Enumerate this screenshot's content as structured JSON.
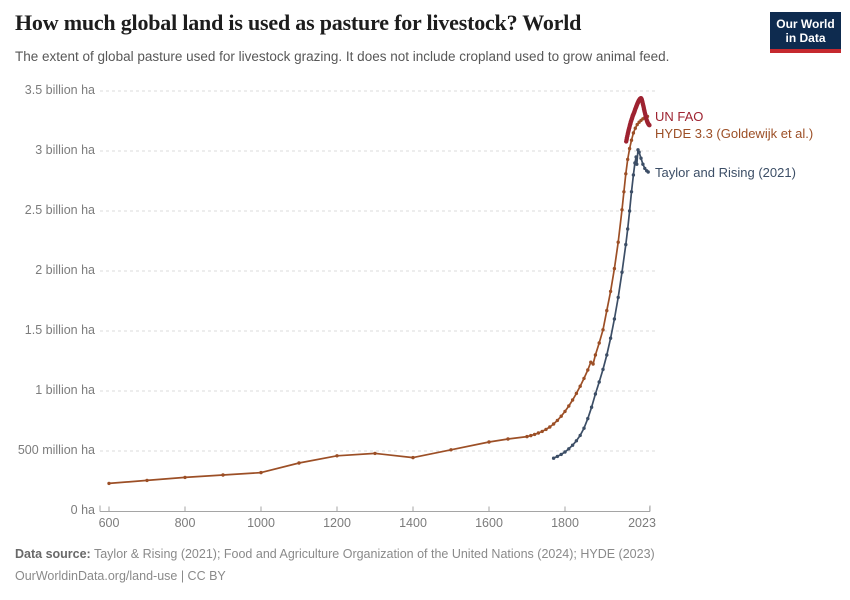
{
  "header": {
    "title": "How much global land is used as pasture for livestock? World",
    "subtitle": "The extent of global pasture used for livestock grazing. It does not include cropland used to grow animal feed."
  },
  "logo": {
    "line1": "Our World",
    "line2": "in Data",
    "bg": "#0e2b4f",
    "stripe": "#c5292f"
  },
  "chart_data": {
    "type": "line",
    "title": "How much global land is used as pasture for livestock? World",
    "unit": "million ha",
    "grid": "dashed",
    "legend_position": "right-end-labels",
    "colors": {
      "grid": "#dbdbdb",
      "axis": "#a5a5a5",
      "tick_text": "#7c7c7c"
    },
    "x_axis": {
      "range": [
        580,
        2023
      ],
      "ticks": [
        {
          "label": "600",
          "year": 600
        },
        {
          "label": "800",
          "year": 800
        },
        {
          "label": "1000",
          "year": 1000
        },
        {
          "label": "1200",
          "year": 1200
        },
        {
          "label": "1400",
          "year": 1400
        },
        {
          "label": "1600",
          "year": 1600
        },
        {
          "label": "1800",
          "year": 1800
        },
        {
          "label": "2023",
          "year": 2023
        }
      ]
    },
    "y_axis": {
      "range_million_ha": [
        0,
        3500
      ],
      "ticks": [
        {
          "label": "0 ha",
          "value": 0
        },
        {
          "label": "500 million ha",
          "value": 500
        },
        {
          "label": "1 billion ha",
          "value": 1000
        },
        {
          "label": "1.5 billion ha",
          "value": 1500
        },
        {
          "label": "2 billion ha",
          "value": 2000
        },
        {
          "label": "2.5 billion ha",
          "value": 2500
        },
        {
          "label": "3 billion ha",
          "value": 3000
        },
        {
          "label": "3.5 billion ha",
          "value": 3500
        }
      ]
    },
    "series": [
      {
        "name": "UN FAO",
        "color": "#9e2331",
        "width": 3,
        "marker": 2.2,
        "points": [
          [
            1961,
            3080
          ],
          [
            1962,
            3095
          ],
          [
            1963,
            3110
          ],
          [
            1964,
            3125
          ],
          [
            1965,
            3140
          ],
          [
            1966,
            3155
          ],
          [
            1967,
            3168
          ],
          [
            1968,
            3180
          ],
          [
            1969,
            3192
          ],
          [
            1970,
            3205
          ],
          [
            1971,
            3218
          ],
          [
            1972,
            3228
          ],
          [
            1973,
            3240
          ],
          [
            1974,
            3250
          ],
          [
            1975,
            3260
          ],
          [
            1976,
            3270
          ],
          [
            1977,
            3280
          ],
          [
            1978,
            3290
          ],
          [
            1979,
            3298
          ],
          [
            1980,
            3306
          ],
          [
            1981,
            3314
          ],
          [
            1982,
            3322
          ],
          [
            1983,
            3330
          ],
          [
            1984,
            3340
          ],
          [
            1985,
            3350
          ],
          [
            1986,
            3358
          ],
          [
            1987,
            3366
          ],
          [
            1988,
            3374
          ],
          [
            1989,
            3382
          ],
          [
            1990,
            3390
          ],
          [
            1991,
            3398
          ],
          [
            1992,
            3405
          ],
          [
            1993,
            3412
          ],
          [
            1994,
            3418
          ],
          [
            1995,
            3424
          ],
          [
            1996,
            3428
          ],
          [
            1997,
            3432
          ],
          [
            1998,
            3436
          ],
          [
            1999,
            3438
          ],
          [
            2000,
            3440
          ],
          [
            2001,
            3435
          ],
          [
            2002,
            3428
          ],
          [
            2003,
            3418
          ],
          [
            2004,
            3406
          ],
          [
            2005,
            3392
          ],
          [
            2006,
            3378
          ],
          [
            2007,
            3364
          ],
          [
            2008,
            3350
          ],
          [
            2009,
            3336
          ],
          [
            2010,
            3322
          ],
          [
            2011,
            3308
          ],
          [
            2012,
            3295
          ],
          [
            2013,
            3282
          ],
          [
            2014,
            3270
          ],
          [
            2015,
            3258
          ],
          [
            2016,
            3248
          ],
          [
            2017,
            3240
          ],
          [
            2018,
            3234
          ],
          [
            2019,
            3228
          ],
          [
            2020,
            3222
          ],
          [
            2021,
            3218
          ],
          [
            2022,
            3215
          ]
        ]
      },
      {
        "name": "HYDE 3.3 (Goldewijk et al.)",
        "color": "#9c4f26",
        "width": 1.7,
        "marker": 1.7,
        "points": [
          [
            600,
            230
          ],
          [
            700,
            255
          ],
          [
            800,
            280
          ],
          [
            900,
            300
          ],
          [
            1000,
            320
          ],
          [
            1100,
            400
          ],
          [
            1200,
            460
          ],
          [
            1300,
            480
          ],
          [
            1400,
            445
          ],
          [
            1500,
            510
          ],
          [
            1600,
            575
          ],
          [
            1650,
            600
          ],
          [
            1700,
            620
          ],
          [
            1710,
            628
          ],
          [
            1720,
            638
          ],
          [
            1730,
            650
          ],
          [
            1740,
            663
          ],
          [
            1750,
            680
          ],
          [
            1760,
            700
          ],
          [
            1770,
            725
          ],
          [
            1780,
            755
          ],
          [
            1790,
            790
          ],
          [
            1800,
            830
          ],
          [
            1810,
            875
          ],
          [
            1820,
            925
          ],
          [
            1830,
            980
          ],
          [
            1840,
            1040
          ],
          [
            1850,
            1105
          ],
          [
            1860,
            1175
          ],
          [
            1868,
            1240
          ],
          [
            1874,
            1225
          ],
          [
            1880,
            1300
          ],
          [
            1890,
            1400
          ],
          [
            1900,
            1510
          ],
          [
            1910,
            1670
          ],
          [
            1920,
            1830
          ],
          [
            1930,
            2020
          ],
          [
            1940,
            2240
          ],
          [
            1950,
            2510
          ],
          [
            1955,
            2660
          ],
          [
            1960,
            2810
          ],
          [
            1965,
            2930
          ],
          [
            1970,
            3020
          ],
          [
            1975,
            3090
          ],
          [
            1980,
            3150
          ],
          [
            1985,
            3190
          ],
          [
            1990,
            3220
          ],
          [
            1995,
            3240
          ],
          [
            2000,
            3255
          ],
          [
            2005,
            3268
          ],
          [
            2010,
            3278
          ],
          [
            2017,
            3288
          ]
        ]
      },
      {
        "name": "Taylor and Rising (2021)",
        "color": "#3c4e66",
        "width": 1.7,
        "marker": 1.7,
        "points": [
          [
            1770,
            440
          ],
          [
            1780,
            455
          ],
          [
            1790,
            472
          ],
          [
            1800,
            492
          ],
          [
            1810,
            518
          ],
          [
            1820,
            548
          ],
          [
            1830,
            585
          ],
          [
            1840,
            630
          ],
          [
            1850,
            690
          ],
          [
            1860,
            770
          ],
          [
            1870,
            865
          ],
          [
            1880,
            975
          ],
          [
            1890,
            1075
          ],
          [
            1900,
            1180
          ],
          [
            1910,
            1300
          ],
          [
            1920,
            1440
          ],
          [
            1930,
            1600
          ],
          [
            1940,
            1780
          ],
          [
            1950,
            1990
          ],
          [
            1960,
            2220
          ],
          [
            1965,
            2350
          ],
          [
            1970,
            2500
          ],
          [
            1975,
            2660
          ],
          [
            1980,
            2800
          ],
          [
            1984,
            2900
          ],
          [
            1987,
            2950
          ],
          [
            1989,
            2890
          ],
          [
            1992,
            3010
          ],
          [
            1995,
            2990
          ],
          [
            2000,
            2940
          ],
          [
            2005,
            2890
          ],
          [
            2010,
            2855
          ],
          [
            2015,
            2835
          ],
          [
            2019,
            2825
          ]
        ]
      }
    ]
  },
  "footer": {
    "source_label": "Data source:",
    "source_text": "Taylor & Rising (2021); Food and Agriculture Organization of the United Nations (2024); HYDE (2023)",
    "note": "OurWorldinData.org/land-use | CC BY"
  }
}
